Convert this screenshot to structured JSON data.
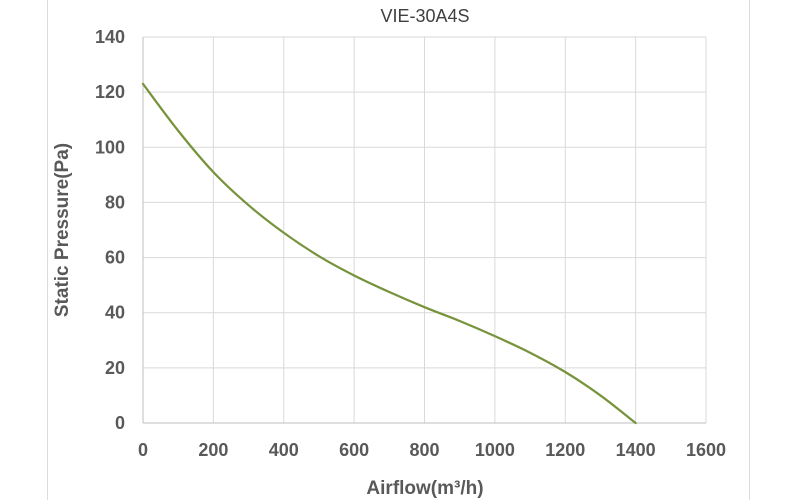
{
  "chart_data": {
    "type": "line",
    "title": "VIE-30A4S",
    "xlabel": "Airflow(m³/h)",
    "ylabel": "Static Pressure(Pa)",
    "xlim": [
      0,
      1600
    ],
    "ylim": [
      0,
      140
    ],
    "x_ticks": [
      0,
      200,
      400,
      600,
      800,
      1000,
      1200,
      1400,
      1600
    ],
    "y_ticks": [
      0,
      20,
      40,
      60,
      80,
      100,
      120,
      140
    ],
    "grid": true,
    "legend": "none",
    "series": [
      {
        "color": "#77933c",
        "x": [
          0,
          100,
          200,
          300,
          400,
          500,
          600,
          700,
          800,
          900,
          1000,
          1100,
          1200,
          1300,
          1400
        ],
        "y": [
          123,
          106,
          91,
          79,
          69,
          60.5,
          53.5,
          47.5,
          42,
          37,
          31.5,
          25.5,
          18.5,
          10,
          0
        ]
      }
    ]
  }
}
